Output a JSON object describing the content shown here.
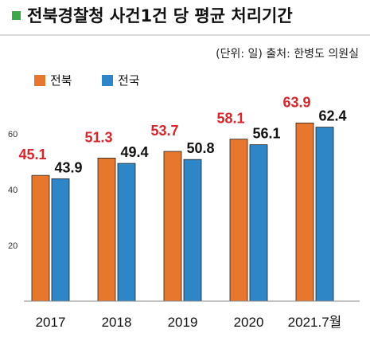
{
  "title": "전북경찰청 사건1건 당 평균 처리기간",
  "source": "(단위: 일)  출처: 한병도 의원실",
  "colors": {
    "accent_square": "#3da84a",
    "series_a": "#e8772e",
    "series_b": "#2f86c6",
    "label_a": "#d7262b",
    "label_b": "#111111"
  },
  "chart_data": {
    "type": "bar",
    "title": "전북경찰청 사건1건 당 평균 처리기간",
    "unit": "(단위: 일)",
    "categories": [
      "2017",
      "2018",
      "2019",
      "2020",
      "2021.7월"
    ],
    "series": [
      {
        "name": "전북",
        "values": [
          45.1,
          51.3,
          53.7,
          58.1,
          63.9
        ]
      },
      {
        "name": "전국",
        "values": [
          43.9,
          49.4,
          50.8,
          56.1,
          62.4
        ]
      }
    ],
    "yticks": [
      20,
      40,
      60
    ],
    "ylim": [
      0,
      70
    ],
    "legend": "top-left",
    "grid": false
  }
}
